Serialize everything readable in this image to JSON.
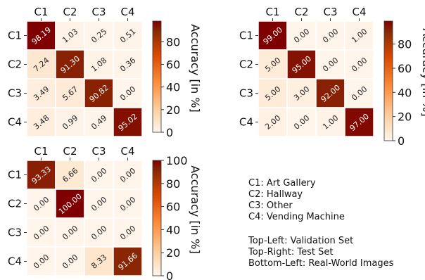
{
  "legend_text": {
    "classes": [
      "C1: Art Gallery",
      "C2: Hallway",
      "C3: Other",
      "C4: Vending Machine"
    ],
    "sets": [
      "Top-Left: Validation Set",
      "Top-Right: Test Set",
      "Bottom-Left: Real-World Images"
    ]
  },
  "colorbar": {
    "label": "Accuracy [in %]",
    "colors": [
      "#fff5eb",
      "#fdd0a2",
      "#fd8d3c",
      "#d94801",
      "#8c2d04",
      "#7f0000"
    ]
  },
  "chart_data": [
    {
      "type": "heatmap",
      "position_name": "top-left",
      "x_categories": [
        "C1",
        "C2",
        "C3",
        "C4"
      ],
      "y_categories": [
        "C1",
        "C2",
        "C3",
        "C4"
      ],
      "values": [
        [
          98.19,
          1.03,
          0.25,
          0.51
        ],
        [
          7.24,
          91.3,
          1.08,
          0.36
        ],
        [
          3.49,
          5.67,
          90.82,
          0.0
        ],
        [
          3.48,
          0.99,
          0.49,
          95.02
        ]
      ],
      "labels": [
        [
          "98.19",
          "1.03",
          "0.25",
          "0.51"
        ],
        [
          "7.24",
          "91.30",
          "1.08",
          "0.36"
        ],
        [
          "3.49",
          "5.67",
          "90.82",
          "0.00"
        ],
        [
          "3.48",
          "0.99",
          "0.49",
          "95.02"
        ]
      ],
      "colorbar_ticks": [
        "0",
        "20",
        "40",
        "60",
        "80"
      ],
      "colorbar_tick_values": [
        0,
        20,
        40,
        60,
        80
      ],
      "vmin": 0,
      "vmax": 98.19
    },
    {
      "type": "heatmap",
      "position_name": "top-right",
      "x_categories": [
        "C1",
        "C2",
        "C3",
        "C4"
      ],
      "y_categories": [
        "C1",
        "C2",
        "C3",
        "C4"
      ],
      "values": [
        [
          99.0,
          0.0,
          0.0,
          1.0
        ],
        [
          5.0,
          95.0,
          0.0,
          0.0
        ],
        [
          5.0,
          3.0,
          92.0,
          0.0
        ],
        [
          2.0,
          0.0,
          1.0,
          97.0
        ]
      ],
      "labels": [
        [
          "99.00",
          "0.00",
          "0.00",
          "1.00"
        ],
        [
          "5.00",
          "95.00",
          "0.00",
          "0.00"
        ],
        [
          "5.00",
          "3.00",
          "92.00",
          "0.00"
        ],
        [
          "2.00",
          "0.00",
          "1.00",
          "97.00"
        ]
      ],
      "colorbar_ticks": [
        "0",
        "20",
        "40",
        "60",
        "80"
      ],
      "colorbar_tick_values": [
        0,
        20,
        40,
        60,
        80
      ],
      "vmin": 0,
      "vmax": 99.0
    },
    {
      "type": "heatmap",
      "position_name": "bottom-left",
      "x_categories": [
        "C1",
        "C2",
        "C3",
        "C4"
      ],
      "y_categories": [
        "C1",
        "C2",
        "C3",
        "C4"
      ],
      "values": [
        [
          93.33,
          6.66,
          0.0,
          0.0
        ],
        [
          0.0,
          100.0,
          0.0,
          0.0
        ],
        [
          0.0,
          0.0,
          0.0,
          0.0
        ],
        [
          0.0,
          0.0,
          8.33,
          91.66
        ]
      ],
      "labels": [
        [
          "93.33",
          "6.66",
          "0.00",
          "0.00"
        ],
        [
          "0.00",
          "100.00",
          "0.00",
          "0.00"
        ],
        [
          "0.00",
          "0.00",
          "0.00",
          "0.00"
        ],
        [
          "0.00",
          "0.00",
          "8.33",
          "91.66"
        ]
      ],
      "colorbar_ticks": [
        "0",
        "20",
        "40",
        "60",
        "80",
        "100"
      ],
      "colorbar_tick_values": [
        0,
        20,
        40,
        60,
        80,
        100
      ],
      "vmin": 0,
      "vmax": 100
    }
  ]
}
